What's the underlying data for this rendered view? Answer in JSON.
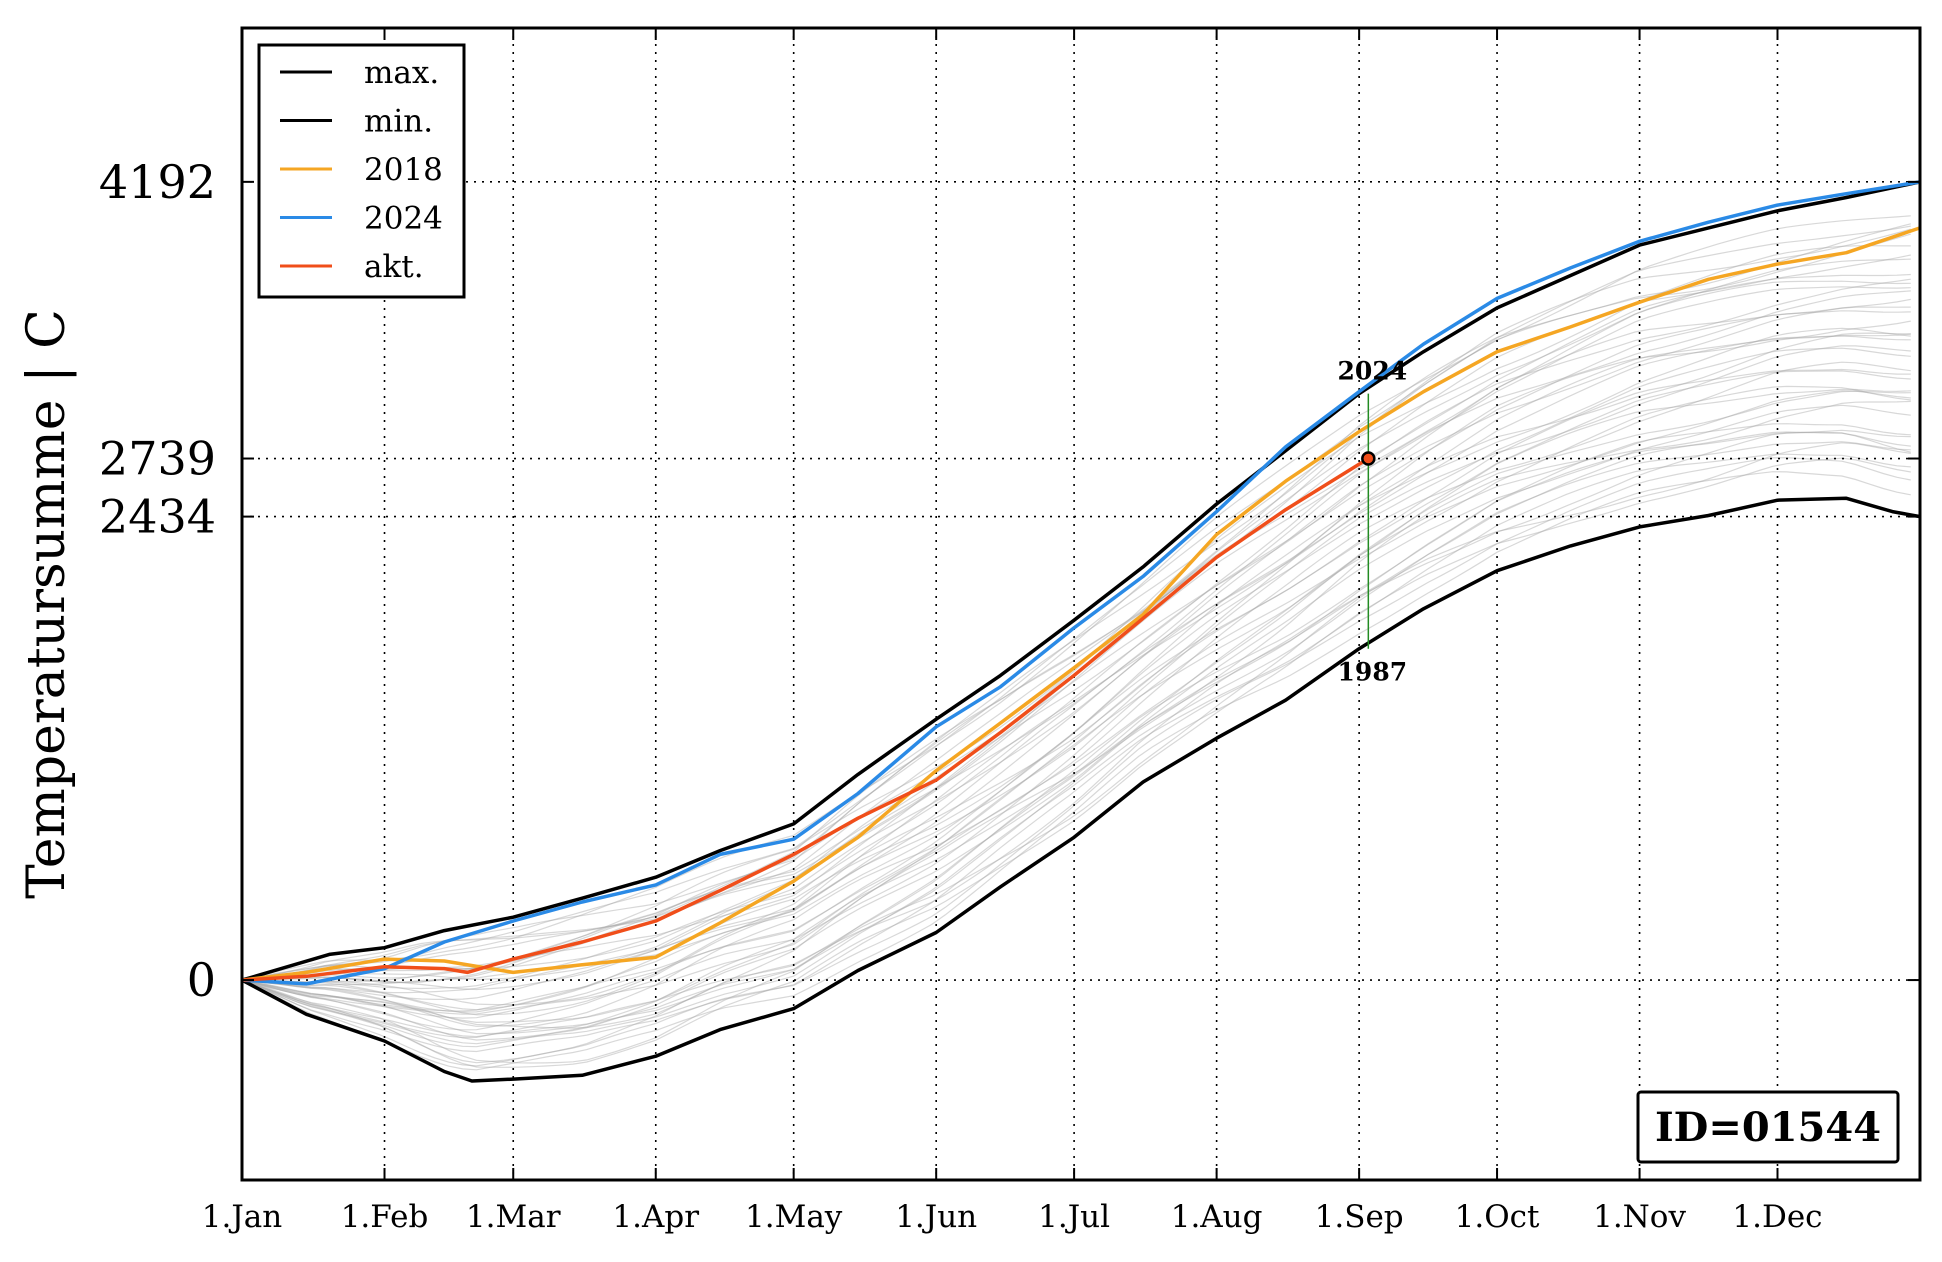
{
  "chart_data": {
    "type": "line",
    "title": "",
    "xlabel": "",
    "ylabel": "Temperatursumme | C",
    "x_ticks": [
      "1.Jan",
      "1.Feb",
      "1.Mar",
      "1.Apr",
      "1.May",
      "1.Jun",
      "1.Jul",
      "1.Aug",
      "1.Sep",
      "1.Oct",
      "1.Nov",
      "1.Dec"
    ],
    "x_tick_days": [
      1,
      32,
      60,
      91,
      121,
      152,
      182,
      213,
      244,
      274,
      305,
      335
    ],
    "xlim": [
      1,
      366
    ],
    "y_ticks": [
      0,
      2434,
      2739,
      4192
    ],
    "ylim": [
      -1050,
      5000
    ],
    "grid": "dotted",
    "legend_position": "upper-left",
    "legend": [
      {
        "label": "max.",
        "color": "#000000"
      },
      {
        "label": "min.",
        "color": "#000000"
      },
      {
        "label": "2018",
        "color": "#f5a623"
      },
      {
        "label": "2024",
        "color": "#2a8ae6"
      },
      {
        "label": "akt.",
        "color": "#f04e1a"
      }
    ],
    "series": [
      {
        "name": "max.",
        "color": "#000000",
        "x": [
          1,
          20,
          32,
          45,
          60,
          75,
          91,
          105,
          121,
          135,
          152,
          166,
          182,
          197,
          213,
          228,
          244,
          258,
          274,
          290,
          305,
          320,
          335,
          350,
          366
        ],
        "y": [
          0,
          135,
          170,
          260,
          330,
          430,
          540,
          680,
          820,
          1080,
          1370,
          1600,
          1890,
          2170,
          2500,
          2780,
          3080,
          3300,
          3530,
          3700,
          3860,
          3950,
          4040,
          4110,
          4192
        ]
      },
      {
        "name": "min.",
        "color": "#000000",
        "x": [
          1,
          15,
          32,
          45,
          51,
          60,
          75,
          91,
          105,
          121,
          135,
          152,
          166,
          182,
          197,
          213,
          228,
          244,
          258,
          274,
          290,
          305,
          320,
          335,
          350,
          360,
          366
        ],
        "y": [
          0,
          -180,
          -320,
          -480,
          -530,
          -520,
          -500,
          -400,
          -260,
          -150,
          50,
          250,
          490,
          750,
          1040,
          1270,
          1470,
          1740,
          1950,
          2150,
          2280,
          2380,
          2440,
          2520,
          2530,
          2460,
          2434
        ]
      },
      {
        "name": "2018",
        "color": "#f5a623",
        "x": [
          1,
          15,
          32,
          45,
          60,
          75,
          91,
          105,
          121,
          135,
          152,
          166,
          182,
          197,
          213,
          228,
          244,
          258,
          274,
          290,
          305,
          320,
          335,
          350,
          366
        ],
        "y": [
          0,
          40,
          110,
          100,
          40,
          80,
          120,
          300,
          520,
          750,
          1100,
          1350,
          1640,
          1920,
          2340,
          2620,
          2880,
          3090,
          3300,
          3430,
          3560,
          3680,
          3760,
          3820,
          3950
        ]
      },
      {
        "name": "2024",
        "color": "#2a8ae6",
        "x": [
          1,
          15,
          32,
          45,
          60,
          75,
          91,
          105,
          121,
          135,
          152,
          166,
          182,
          197,
          213,
          228,
          244,
          258,
          274,
          290,
          305,
          320,
          335,
          350,
          366
        ],
        "y": [
          0,
          -20,
          60,
          200,
          310,
          410,
          500,
          660,
          740,
          980,
          1330,
          1540,
          1850,
          2120,
          2460,
          2800,
          3090,
          3340,
          3580,
          3740,
          3880,
          3980,
          4070,
          4130,
          4192
        ]
      },
      {
        "name": "akt.",
        "color": "#f04e1a",
        "x": [
          1,
          15,
          32,
          45,
          50,
          60,
          75,
          91,
          105,
          121,
          135,
          152,
          166,
          182,
          197,
          213,
          228,
          246
        ],
        "y": [
          0,
          20,
          70,
          60,
          40,
          110,
          200,
          310,
          470,
          660,
          850,
          1050,
          1300,
          1600,
          1900,
          2220,
          2470,
          2739
        ]
      }
    ],
    "current": {
      "x": 246,
      "y": 2739,
      "label_top": "2024",
      "label_bottom": "1987",
      "top_y": 3080,
      "bottom_y": 1740
    },
    "annotation_box": "ID=01544"
  }
}
